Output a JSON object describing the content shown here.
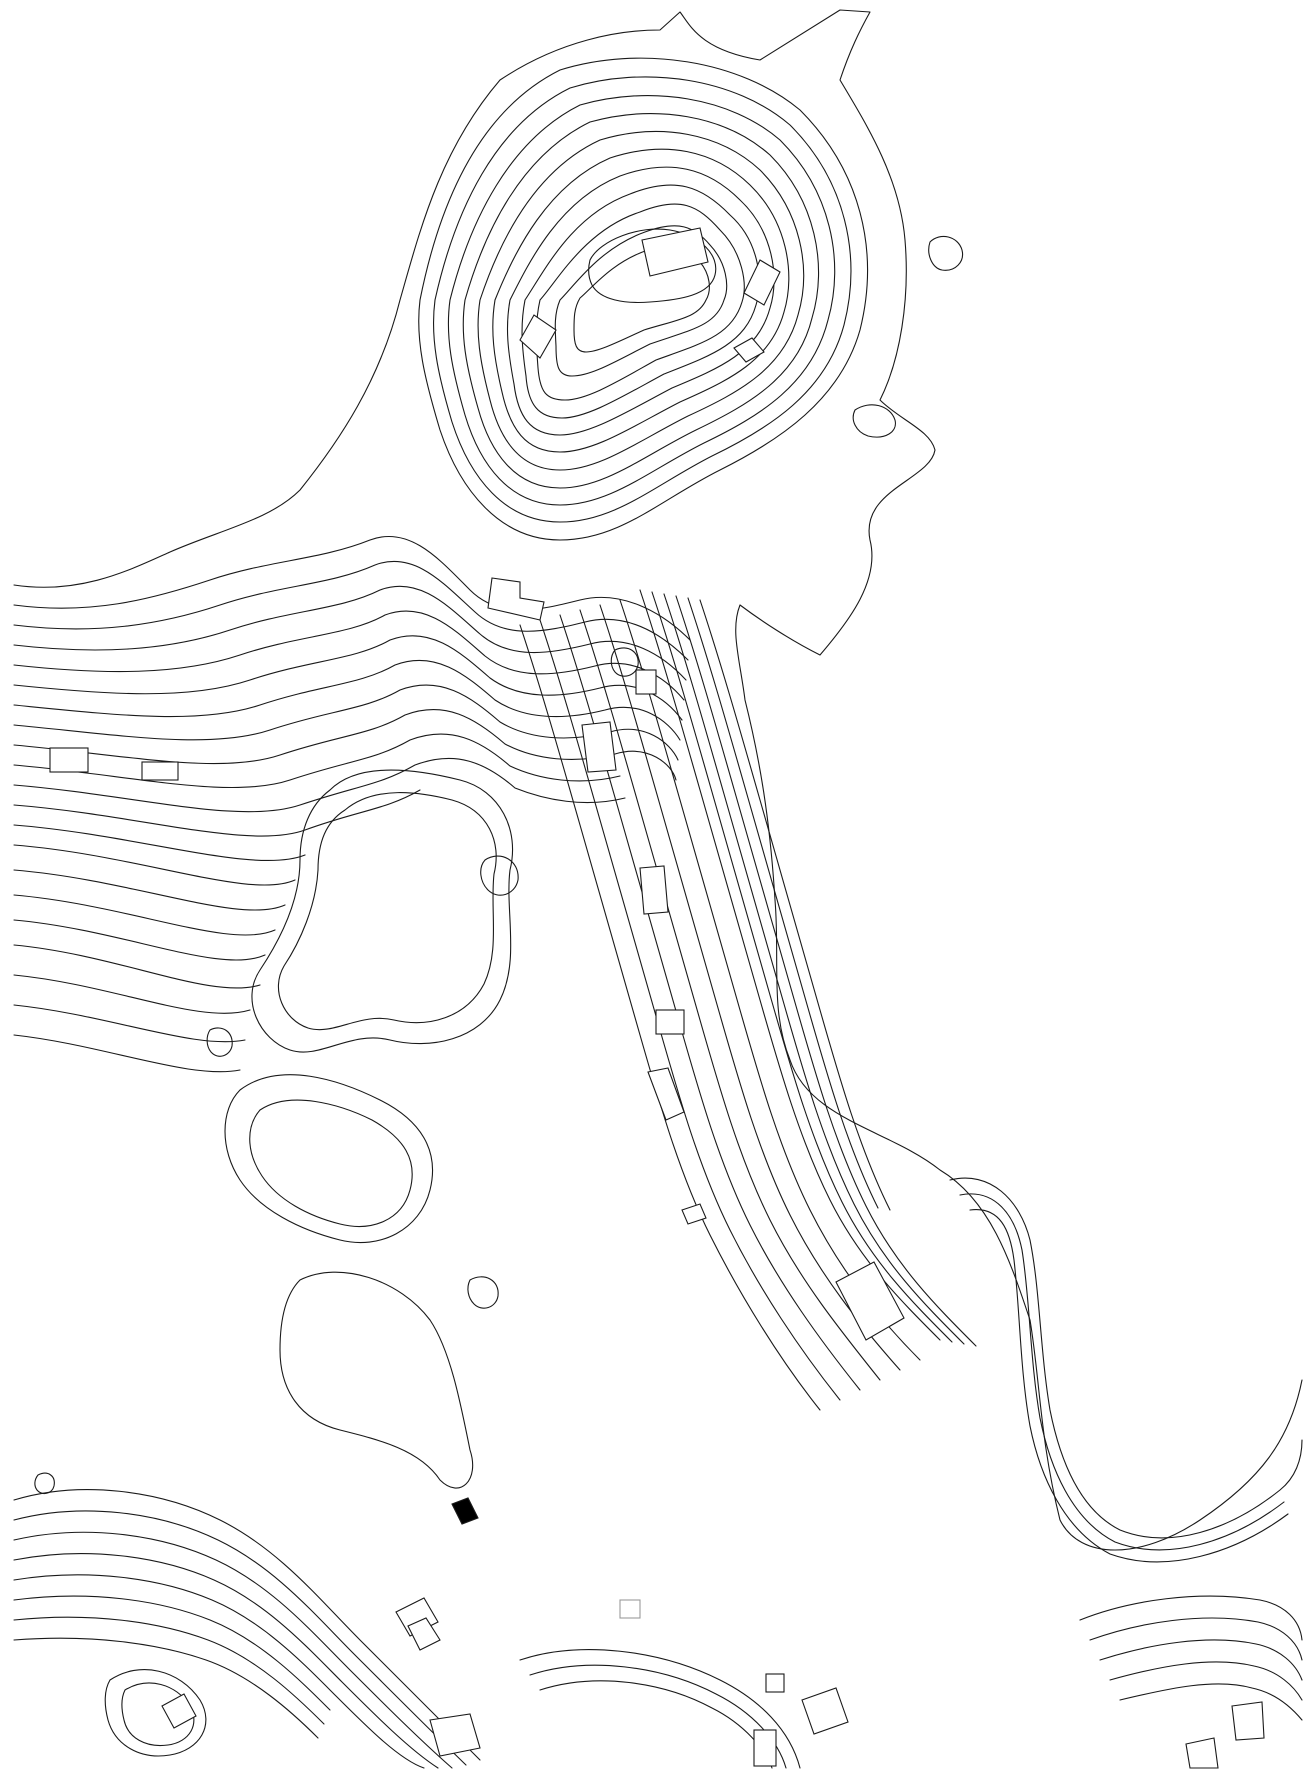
{
  "map": {
    "style": {
      "background": "#ffffff",
      "contour_color": "#1a1a1a",
      "building_fill": "#ffffff",
      "highlight_fill": "#000000",
      "faint_stroke": "#9a9a9a"
    },
    "features": {
      "contour_lines": "topographic-contours",
      "buildings": "building-footprints"
    }
  }
}
